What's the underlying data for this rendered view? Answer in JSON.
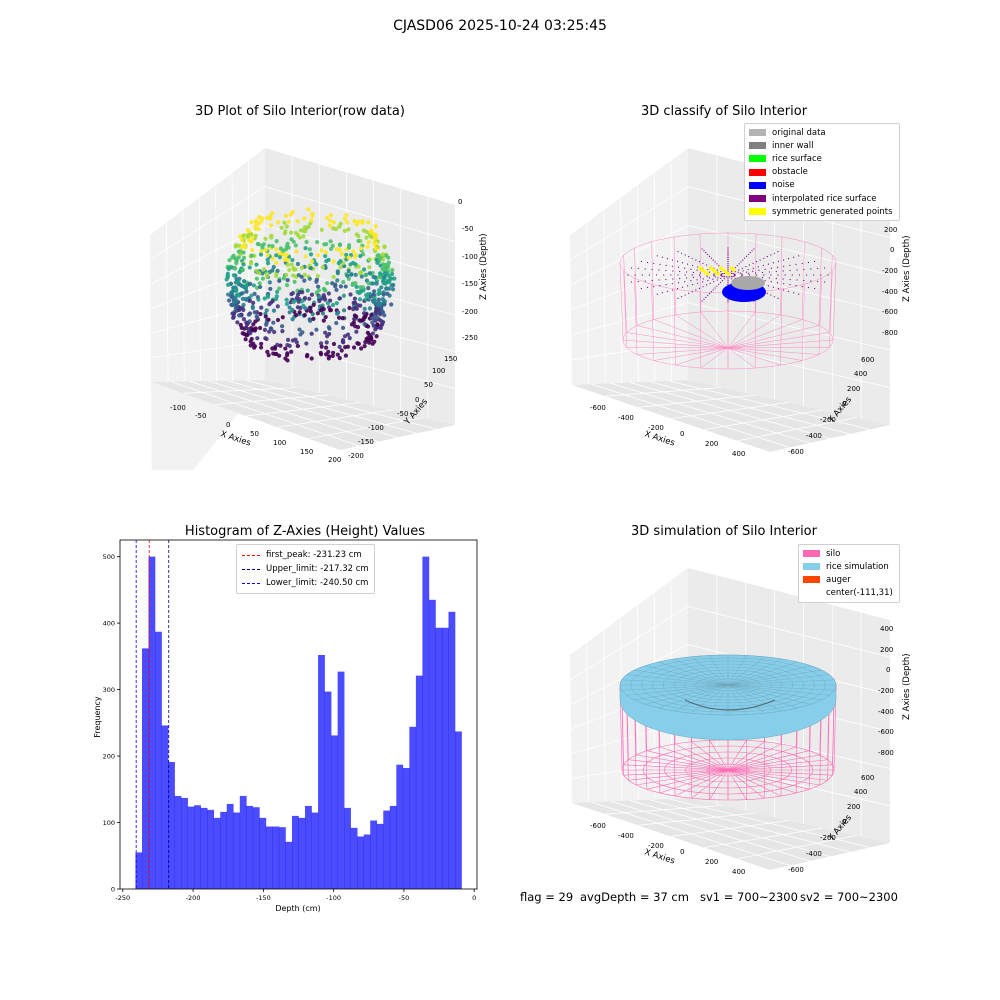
{
  "suptitle": "CJASD06 2025-10-24 03:25:45",
  "panels": {
    "raw": {
      "title": "3D Plot of Silo Interior(row data)",
      "xlabel": "X Axies",
      "ylabel": "Y Axies",
      "zlabel": "Z Axies (Depth)",
      "xticks": [
        "-100",
        "-50",
        "0",
        "50",
        "100",
        "150",
        "200"
      ],
      "yticks": [
        "-200",
        "-150",
        "-100",
        "-50",
        "0",
        "50",
        "100",
        "150"
      ],
      "zticks": [
        "0",
        "-50",
        "-100",
        "-150",
        "-200",
        "-250"
      ]
    },
    "classify": {
      "title": "3D classify of Silo Interior",
      "xlabel": "X Axies",
      "ylabel": "Y Axies",
      "zlabel": "Z Axies (Depth)",
      "xticks": [
        "-600",
        "-400",
        "-200",
        "0",
        "200",
        "400"
      ],
      "yticks": [
        "-600",
        "-400",
        "-200",
        "0",
        "200",
        "400",
        "600"
      ],
      "zticks": [
        "400",
        "200",
        "0",
        "-200",
        "-400",
        "-600",
        "-800"
      ],
      "legend": [
        {
          "label": "original data",
          "color": "#b3b3b3"
        },
        {
          "label": "inner wall",
          "color": "#808080"
        },
        {
          "label": "rice surface",
          "color": "#00ff00"
        },
        {
          "label": "obstacle",
          "color": "#ff0000"
        },
        {
          "label": "noise",
          "color": "#0000ff"
        },
        {
          "label": "interpolated rice surface",
          "color": "#800080"
        },
        {
          "label": "symmetric generated points",
          "color": "#ffff00"
        }
      ]
    },
    "simulation": {
      "title": "3D simulation of Silo Interior",
      "xlabel": "X Axies",
      "ylabel": "Y Axies",
      "zlabel": "Z Axies (Depth)",
      "xticks": [
        "-600",
        "-400",
        "-200",
        "0",
        "200",
        "400"
      ],
      "yticks": [
        "-600",
        "-400",
        "-200",
        "0",
        "200",
        "400",
        "600"
      ],
      "zticks": [
        "400",
        "200",
        "0",
        "-200",
        "-400",
        "-600",
        "-800"
      ],
      "legend": [
        {
          "label": "silo",
          "color": "#ff69b4"
        },
        {
          "label": "rice simulation",
          "color": "#87ceeb"
        },
        {
          "label": "auger",
          "color": "#ff4500"
        },
        {
          "label": "center(-111,31)",
          "color": "#ffffff"
        }
      ]
    }
  },
  "status": {
    "flag": "flag = 29",
    "avg_depth": "avgDepth = 37 cm",
    "sv1": "sv1 = 700~2300",
    "sv2": "sv2 = 700~2300"
  },
  "chart_data": {
    "type": "bar",
    "title": "Histogram of Z-Axies (Height) Values",
    "xlabel": "Depth (cm)",
    "ylabel": "Frequency",
    "xlim": [
      -252,
      2
    ],
    "ylim": [
      0,
      525
    ],
    "bin_start": -241,
    "bin_width": 4.64,
    "values": [
      55,
      362,
      500,
      387,
      246,
      191,
      140,
      137,
      124,
      126,
      122,
      119,
      107,
      116,
      128,
      115,
      140,
      125,
      123,
      107,
      94,
      94,
      93,
      71,
      110,
      107,
      125,
      115,
      352,
      297,
      231,
      327,
      122,
      92,
      79,
      82,
      103,
      98,
      118,
      125,
      187,
      182,
      244,
      321,
      500,
      435,
      393,
      393,
      417,
      237
    ],
    "bar_color": "#0000ff",
    "bar_alpha": 0.7,
    "xticks": [
      -250,
      -200,
      -150,
      -100,
      -50,
      0
    ],
    "yticks": [
      0,
      100,
      200,
      300,
      400,
      500
    ],
    "vlines": [
      {
        "label": "first_peak: -231.23 cm",
        "x": -231.23,
        "color": "#ff0000"
      },
      {
        "label": "Upper_limit: -217.32 cm",
        "x": -217.32,
        "color": "#00008b"
      },
      {
        "label": "Lower_limit: -240.50 cm",
        "x": -240.5,
        "color": "#0000ff"
      }
    ]
  }
}
